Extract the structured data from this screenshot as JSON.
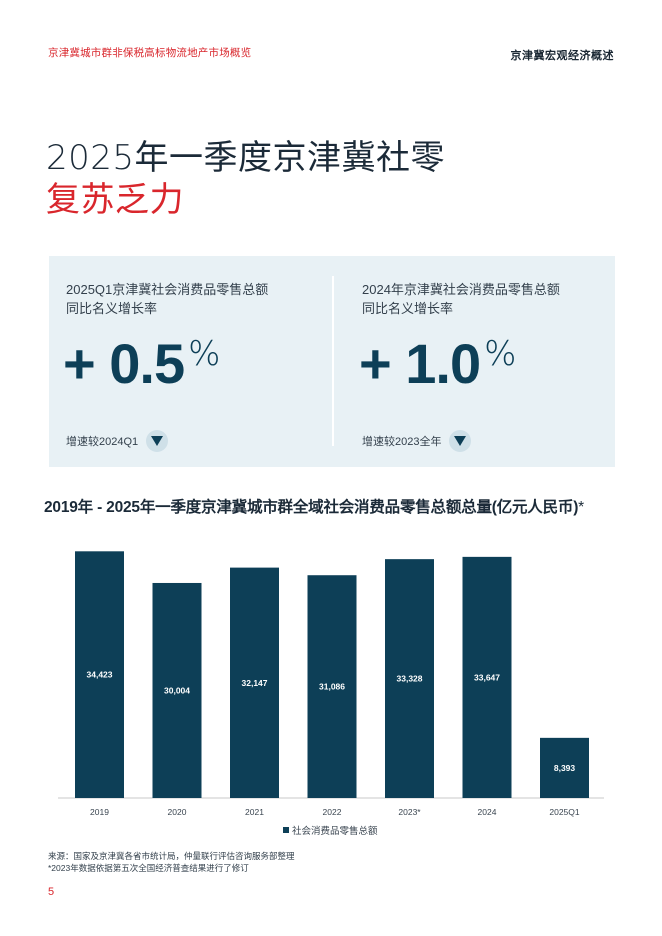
{
  "header": {
    "left": "京津冀城市群非保税高标物流地产市场概览",
    "right": "京津冀宏观经济概述"
  },
  "title": {
    "line1": "2025年一季度京津冀社零",
    "line2": "复苏乏力"
  },
  "stats": [
    {
      "label_line1": "2025Q1京津冀社会消费品零售总额",
      "label_line2": "同比名义增长率",
      "value": "+ 0.5",
      "unit": "%",
      "note": "增速较2024Q1",
      "trend_icon": "triangle-down-icon"
    },
    {
      "label_line1": "2024年京津冀社会消费品零售总额",
      "label_line2": "同比名义增长率",
      "value": "+ 1.0",
      "unit": "%",
      "note": "增速较2023全年",
      "trend_icon": "triangle-down-icon"
    }
  ],
  "chart_heading": "2019年 - 2025年一季度京津冀城市群全域社会消费品零售总额总量(亿元人民币)",
  "chart_heading_mark": "*",
  "chart_data": {
    "type": "bar",
    "title": "2019年 - 2025年一季度京津冀城市群全域社会消费品零售总额总量(亿元人民币)",
    "categories": [
      "2019",
      "2020",
      "2021",
      "2022",
      "2023*",
      "2024",
      "2025Q1"
    ],
    "series": [
      {
        "name": "社会消费品零售总额",
        "values": [
          34423,
          30004,
          32147,
          31086,
          33328,
          33647,
          8393
        ]
      }
    ],
    "data_labels": [
      "34,423",
      "30,004",
      "32,147",
      "31,086",
      "33,328",
      "33,647",
      "8,393"
    ],
    "ylim": [
      0,
      36000
    ],
    "xlabel": "",
    "ylabel": "",
    "legend": "bottom-center",
    "grid": false,
    "bar_color": "#0d3f57"
  },
  "source": {
    "line1": "来源：国家及京津冀各省市统计局，仲量联行评估咨询服务部整理",
    "line2": "*2023年数据依据第五次全国经济普查结果进行了修订"
  },
  "page_number": "5"
}
